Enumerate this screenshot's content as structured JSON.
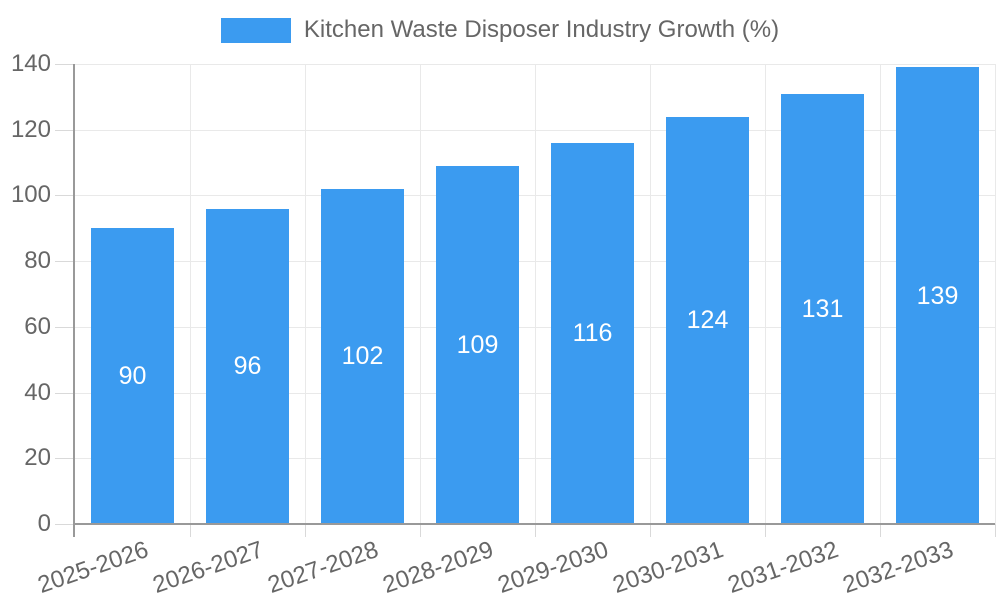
{
  "legend": {
    "label": "Kitchen Waste Disposer Industry Growth (%)",
    "position": "top"
  },
  "chart_data": {
    "type": "bar",
    "title": "Kitchen Waste Disposer Industry Growth (%)",
    "series_name": "Kitchen Waste Disposer Industry Growth (%)",
    "categories": [
      "2025-2026",
      "2026-2027",
      "2027-2028",
      "2028-2029",
      "2029-2030",
      "2030-2031",
      "2031-2032",
      "2032-2033"
    ],
    "values": [
      90,
      96,
      102,
      109,
      116,
      124,
      131,
      139
    ],
    "xlabel": "",
    "ylabel": "",
    "ylim": [
      0,
      140
    ],
    "y_ticks": [
      0,
      20,
      40,
      60,
      80,
      100,
      120,
      140
    ],
    "grid": true,
    "legend_position": "top",
    "x_label_rotation_deg": -19,
    "colors": {
      "bar": "#3B9BF0",
      "value_label": "#FFFFFF",
      "axis_text": "#666666",
      "axis_line": "#999999",
      "grid_line": "#E9E9E9",
      "tick_line": "#D9D9D9",
      "background": "#FFFFFF"
    }
  }
}
